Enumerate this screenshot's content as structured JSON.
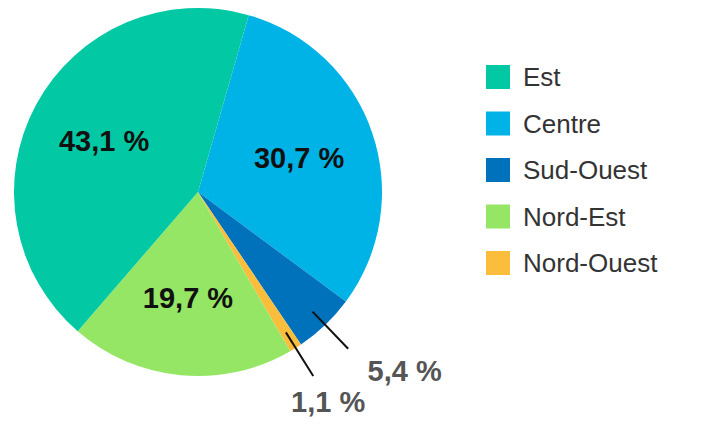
{
  "chart_data": {
    "type": "pie",
    "categories": [
      "Est",
      "Centre",
      "Sud-Ouest",
      "Nord-Est",
      "Nord-Ouest"
    ],
    "values": [
      43.1,
      30.7,
      5.4,
      19.7,
      1.1
    ],
    "value_labels": [
      "43,1 %",
      "30,7 %",
      "5,4 %",
      "19,7 %",
      "1,1 %"
    ],
    "colors": [
      "#02c9a3",
      "#00b3e6",
      "#0072bc",
      "#95e665",
      "#fbbd3c"
    ],
    "data_labels": true,
    "legend": "right"
  }
}
